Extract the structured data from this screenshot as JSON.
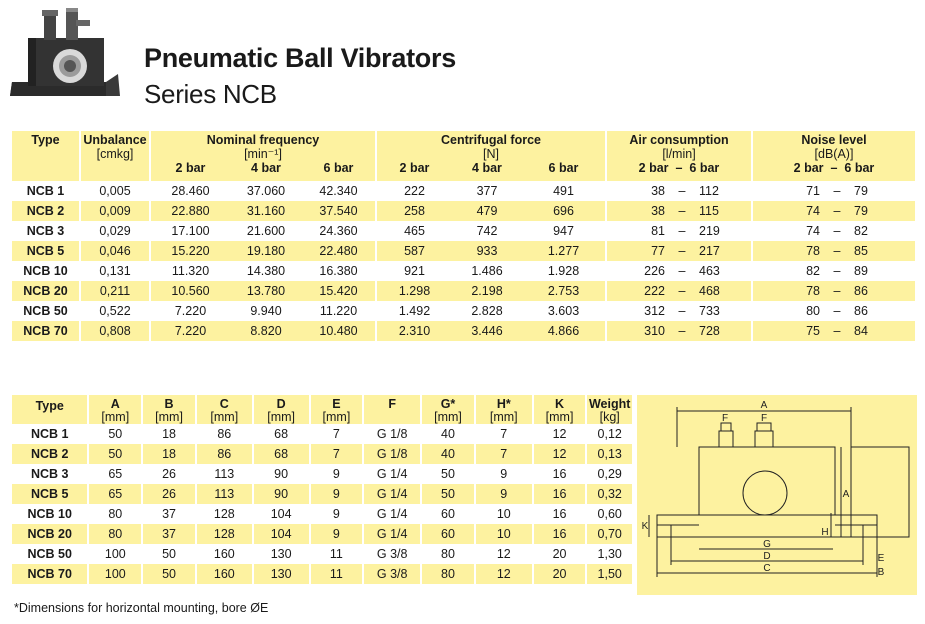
{
  "header": {
    "title": "Pneumatic Ball Vibrators",
    "subtitle": "Series NCB"
  },
  "table1": {
    "headers": {
      "type": "Type",
      "unbalance": "Unbalance",
      "unbalance_unit": "[cmkg]",
      "freq": "Nominal frequency",
      "freq_unit": "[min⁻¹]",
      "force": "Centrifugal force",
      "force_unit": "[N]",
      "air": "Air consumption",
      "air_unit": "[l/min]",
      "noise": "Noise level",
      "noise_unit": "[dB(A)]",
      "p2": "2 bar",
      "p4": "4 bar",
      "p6": "6 bar",
      "range_sep": "–"
    },
    "rows": [
      {
        "type": "NCB 1",
        "unb": "0,005",
        "f2": "28.460",
        "f4": "37.060",
        "f6": "42.340",
        "c2": "222",
        "c4": "377",
        "c6": "491",
        "a2": "38",
        "a6": "112",
        "n2": "71",
        "n6": "79"
      },
      {
        "type": "NCB 2",
        "unb": "0,009",
        "f2": "22.880",
        "f4": "31.160",
        "f6": "37.540",
        "c2": "258",
        "c4": "479",
        "c6": "696",
        "a2": "38",
        "a6": "115",
        "n2": "74",
        "n6": "79"
      },
      {
        "type": "NCB 3",
        "unb": "0,029",
        "f2": "17.100",
        "f4": "21.600",
        "f6": "24.360",
        "c2": "465",
        "c4": "742",
        "c6": "947",
        "a2": "81",
        "a6": "219",
        "n2": "74",
        "n6": "82"
      },
      {
        "type": "NCB 5",
        "unb": "0,046",
        "f2": "15.220",
        "f4": "19.180",
        "f6": "22.480",
        "c2": "587",
        "c4": "933",
        "c6": "1.277",
        "a2": "77",
        "a6": "217",
        "n2": "78",
        "n6": "85"
      },
      {
        "type": "NCB 10",
        "unb": "0,131",
        "f2": "11.320",
        "f4": "14.380",
        "f6": "16.380",
        "c2": "921",
        "c4": "1.486",
        "c6": "1.928",
        "a2": "226",
        "a6": "463",
        "n2": "82",
        "n6": "89"
      },
      {
        "type": "NCB 20",
        "unb": "0,211",
        "f2": "10.560",
        "f4": "13.780",
        "f6": "15.420",
        "c2": "1.298",
        "c4": "2.198",
        "c6": "2.753",
        "a2": "222",
        "a6": "468",
        "n2": "78",
        "n6": "86"
      },
      {
        "type": "NCB 50",
        "unb": "0,522",
        "f2": "7.220",
        "f4": "9.940",
        "f6": "11.220",
        "c2": "1.492",
        "c4": "2.828",
        "c6": "3.603",
        "a2": "312",
        "a6": "733",
        "n2": "80",
        "n6": "86"
      },
      {
        "type": "NCB 70",
        "unb": "0,808",
        "f2": "7.220",
        "f4": "8.820",
        "f6": "10.480",
        "c2": "2.310",
        "c4": "3.446",
        "c6": "4.866",
        "a2": "310",
        "a6": "728",
        "n2": "75",
        "n6": "84"
      }
    ]
  },
  "table2": {
    "headers": {
      "type": "Type",
      "A": "A",
      "B": "B",
      "C": "C",
      "D": "D",
      "E": "E",
      "F": "F",
      "G": "G*",
      "H": "H*",
      "K": "K",
      "weight": "Weight",
      "mm": "[mm]",
      "kg": "[kg]"
    },
    "rows": [
      {
        "type": "NCB 1",
        "A": "50",
        "B": "18",
        "C": "86",
        "D": "68",
        "E": "7",
        "F": "G 1/8",
        "G": "40",
        "H": "7",
        "K": "12",
        "W": "0,12"
      },
      {
        "type": "NCB 2",
        "A": "50",
        "B": "18",
        "C": "86",
        "D": "68",
        "E": "7",
        "F": "G 1/8",
        "G": "40",
        "H": "7",
        "K": "12",
        "W": "0,13"
      },
      {
        "type": "NCB 3",
        "A": "65",
        "B": "26",
        "C": "113",
        "D": "90",
        "E": "9",
        "F": "G 1/4",
        "G": "50",
        "H": "9",
        "K": "16",
        "W": "0,29"
      },
      {
        "type": "NCB 5",
        "A": "65",
        "B": "26",
        "C": "113",
        "D": "90",
        "E": "9",
        "F": "G 1/4",
        "G": "50",
        "H": "9",
        "K": "16",
        "W": "0,32"
      },
      {
        "type": "NCB 10",
        "A": "80",
        "B": "37",
        "C": "128",
        "D": "104",
        "E": "9",
        "F": "G 1/4",
        "G": "60",
        "H": "10",
        "K": "16",
        "W": "0,60"
      },
      {
        "type": "NCB 20",
        "A": "80",
        "B": "37",
        "C": "128",
        "D": "104",
        "E": "9",
        "F": "G 1/4",
        "G": "60",
        "H": "10",
        "K": "16",
        "W": "0,70"
      },
      {
        "type": "NCB 50",
        "A": "100",
        "B": "50",
        "C": "160",
        "D": "130",
        "E": "11",
        "F": "G 3/8",
        "G": "80",
        "H": "12",
        "K": "20",
        "W": "1,30"
      },
      {
        "type": "NCB 70",
        "A": "100",
        "B": "50",
        "C": "160",
        "D": "130",
        "E": "11",
        "F": "G 3/8",
        "G": "80",
        "H": "12",
        "K": "20",
        "W": "1,50"
      }
    ]
  },
  "diagram": {
    "labels": {
      "A": "A",
      "B": "B",
      "C": "C",
      "D": "D",
      "E": "E",
      "F": "F",
      "G": "G",
      "H": "H",
      "K": "K"
    }
  },
  "footnote": "*Dimensions for horizontal mounting, bore ØE"
}
